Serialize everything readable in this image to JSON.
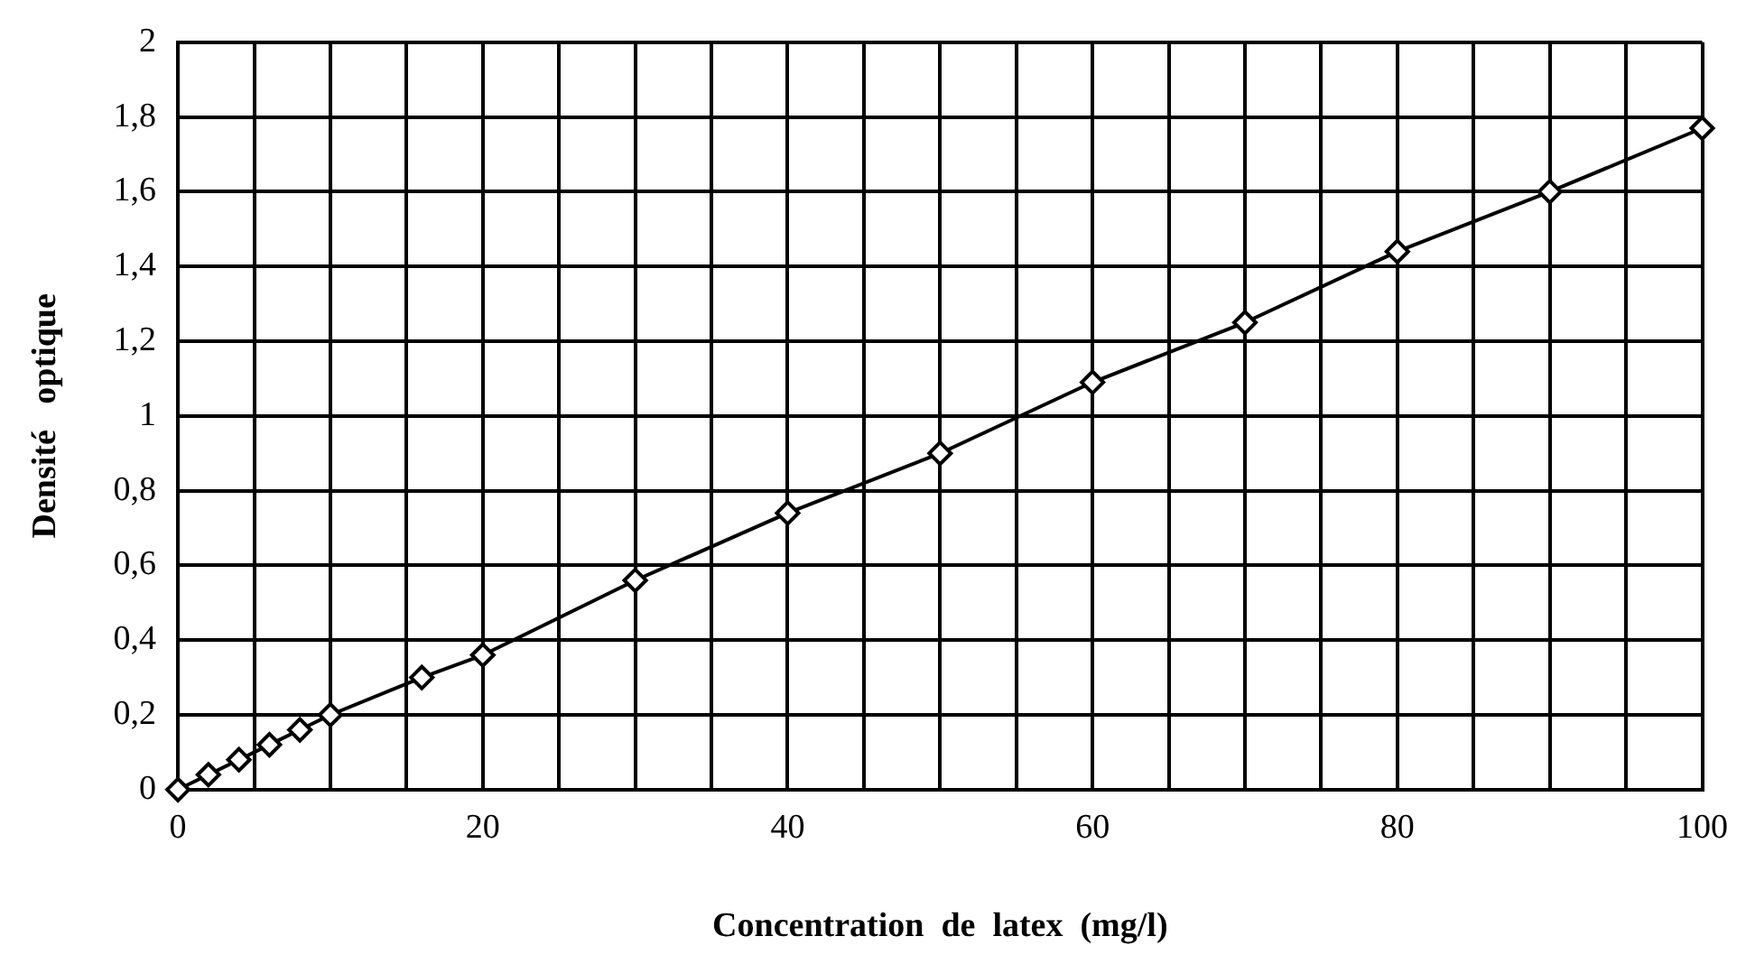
{
  "chart_data": {
    "type": "line",
    "xlabel": "Concentration  de  latex  (mg/l)",
    "ylabel": "Densité   optique",
    "x": [
      0,
      2,
      4,
      6,
      8,
      10,
      16,
      20,
      30,
      40,
      50,
      60,
      70,
      80,
      90,
      100
    ],
    "series": [
      {
        "color": "#000000",
        "values": [
          0,
          0.04,
          0.08,
          0.12,
          0.16,
          0.2,
          0.3,
          0.36,
          0.56,
          0.74,
          0.9,
          1.09,
          1.25,
          1.44,
          1.6,
          1.77
        ]
      }
    ],
    "xlim": [
      0,
      100
    ],
    "xticks": [
      0,
      {
        "value": 5,
        "label": null
      },
      {
        "value": 10,
        "label": null
      },
      {
        "value": 15,
        "label": null
      },
      20,
      {
        "value": 25,
        "label": null
      },
      {
        "value": 30,
        "label": null
      },
      {
        "value": 35,
        "label": null
      },
      40,
      {
        "value": 45,
        "label": null
      },
      {
        "value": 50,
        "label": null
      },
      {
        "value": 55,
        "label": null
      },
      60,
      {
        "value": 65,
        "label": null
      },
      {
        "value": 70,
        "label": null
      },
      {
        "value": 75,
        "label": null
      },
      80,
      {
        "value": 85,
        "label": null
      },
      {
        "value": 90,
        "label": null
      },
      {
        "value": 95,
        "label": null
      },
      100
    ],
    "ylim": [
      0,
      2
    ],
    "yticks": [
      0,
      {
        "value": 0.2,
        "label": "0,2"
      },
      {
        "value": 0.4,
        "label": "0,4"
      },
      {
        "value": 0.6,
        "label": "0,6"
      },
      {
        "value": 0.8,
        "label": "0,8"
      },
      1,
      {
        "value": 1.2,
        "label": "1,2"
      },
      {
        "value": 1.4,
        "label": "1,4"
      },
      {
        "value": 1.6,
        "label": "1,6"
      },
      {
        "value": 1.8,
        "label": "1,8"
      },
      2
    ],
    "grid": true,
    "legend": false,
    "marker": "diamond",
    "line_style": "solid"
  }
}
